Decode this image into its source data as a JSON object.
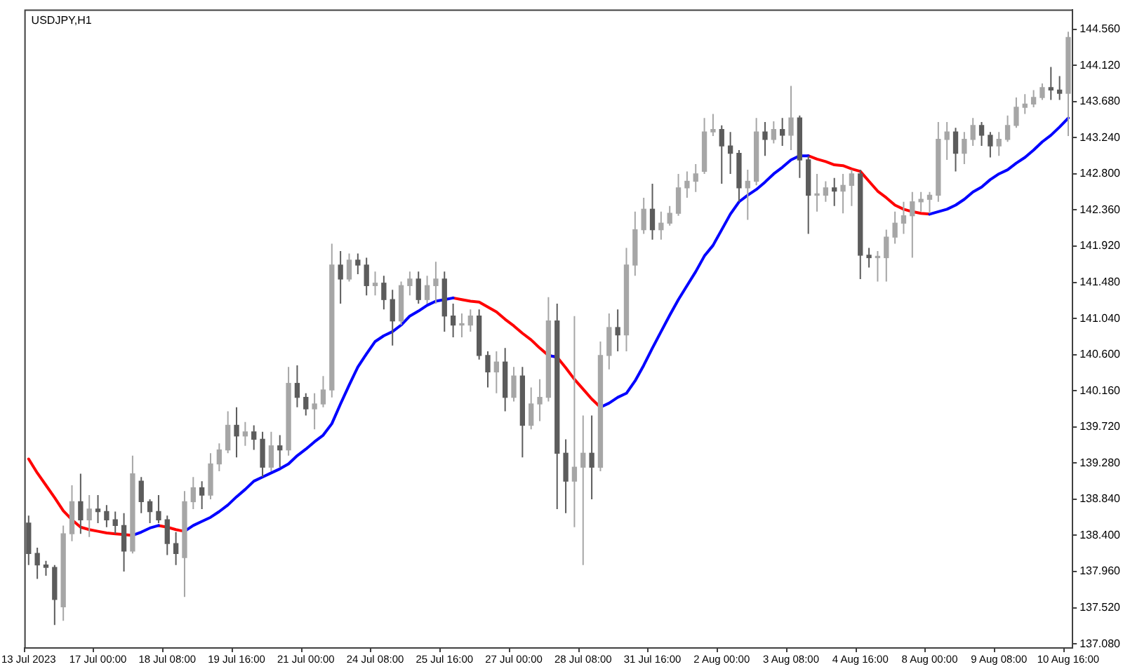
{
  "chart_data": {
    "type": "candlestick",
    "title": "USDJPY,H1",
    "marker": "none",
    "categories": [
      "13 Jul 2023",
      null,
      null,
      null,
      null,
      null,
      null,
      null,
      "17 Jul 00:00",
      null,
      null,
      null,
      null,
      null,
      null,
      null,
      "18 Jul 08:00",
      null,
      null,
      null,
      null,
      null,
      null,
      null,
      "19 Jul 16:00",
      null,
      null,
      null,
      null,
      null,
      null,
      null,
      "21 Jul 00:00",
      null,
      null,
      null,
      null,
      null,
      null,
      null,
      "24 Jul 08:00",
      null,
      null,
      null,
      null,
      null,
      null,
      null,
      "25 Jul 16:00",
      null,
      null,
      null,
      null,
      null,
      null,
      null,
      "27 Jul 00:00",
      null,
      null,
      null,
      null,
      null,
      null,
      null,
      "28 Jul 08:00",
      null,
      null,
      null,
      null,
      null,
      null,
      null,
      "31 Jul 16:00",
      null,
      null,
      null,
      null,
      null,
      null,
      null,
      "2 Aug 00:00",
      null,
      null,
      null,
      null,
      null,
      null,
      null,
      "3 Aug 08:00",
      null,
      null,
      null,
      null,
      null,
      null,
      null,
      "4 Aug 16:00",
      null,
      null,
      null,
      null,
      null,
      null,
      null,
      "8 Aug 00:00",
      null,
      null,
      null,
      null,
      null,
      null,
      null,
      "9 Aug 08:00",
      null,
      null,
      null,
      null,
      null,
      null,
      null,
      "10 Aug 16:00"
    ],
    "ohlc": [
      [
        138.55,
        138.64,
        138.04,
        138.18
      ],
      [
        138.18,
        138.25,
        137.87,
        138.04
      ],
      [
        138.04,
        138.09,
        137.91,
        138.01
      ],
      [
        138.01,
        138.04,
        137.31,
        137.62
      ],
      [
        137.53,
        138.52,
        137.36,
        138.42
      ],
      [
        138.42,
        139.01,
        138.33,
        138.81
      ],
      [
        138.81,
        139.15,
        138.42,
        138.59
      ],
      [
        138.59,
        138.89,
        138.38,
        138.72
      ],
      [
        138.72,
        138.89,
        138.55,
        138.69
      ],
      [
        138.69,
        138.77,
        138.5,
        138.59
      ],
      [
        138.59,
        138.69,
        138.42,
        138.52
      ],
      [
        138.52,
        138.67,
        137.96,
        138.21
      ],
      [
        138.21,
        139.37,
        138.18,
        139.15
      ],
      [
        139.06,
        139.11,
        138.67,
        138.81
      ],
      [
        138.81,
        138.84,
        138.55,
        138.69
      ],
      [
        138.69,
        138.89,
        138.55,
        138.59
      ],
      [
        138.59,
        138.64,
        138.16,
        138.3
      ],
      [
        138.3,
        138.44,
        138.04,
        138.18
      ],
      [
        138.13,
        138.94,
        137.65,
        138.81
      ],
      [
        138.81,
        139.11,
        138.72,
        138.98
      ],
      [
        138.98,
        139.06,
        138.72,
        138.89
      ],
      [
        138.89,
        139.4,
        138.84,
        139.27
      ],
      [
        139.27,
        139.52,
        139.18,
        139.44
      ],
      [
        139.44,
        139.91,
        139.4,
        139.74
      ],
      [
        139.74,
        139.96,
        139.35,
        139.61
      ],
      [
        139.61,
        139.78,
        139.49,
        139.66
      ],
      [
        139.66,
        139.74,
        139.44,
        139.57
      ],
      [
        139.57,
        139.66,
        139.11,
        139.23
      ],
      [
        139.23,
        139.66,
        139.18,
        139.49
      ],
      [
        139.49,
        139.62,
        139.23,
        139.44
      ],
      [
        139.44,
        140.45,
        139.37,
        140.25
      ],
      [
        140.25,
        140.47,
        139.96,
        140.08
      ],
      [
        140.08,
        140.13,
        139.86,
        139.94
      ],
      [
        139.94,
        140.13,
        139.69,
        140.0
      ],
      [
        140.0,
        140.34,
        139.96,
        140.17
      ],
      [
        140.17,
        141.95,
        140.08,
        141.69
      ],
      [
        141.69,
        141.86,
        141.22,
        141.52
      ],
      [
        141.52,
        141.83,
        141.49,
        141.75
      ],
      [
        141.75,
        141.83,
        141.58,
        141.69
      ],
      [
        141.69,
        141.78,
        141.32,
        141.44
      ],
      [
        141.44,
        141.61,
        141.32,
        141.47
      ],
      [
        141.47,
        141.56,
        141.15,
        141.27
      ],
      [
        141.27,
        141.39,
        140.71,
        141.01
      ],
      [
        141.01,
        141.49,
        140.96,
        141.44
      ],
      [
        141.44,
        141.61,
        141.32,
        141.52
      ],
      [
        141.52,
        141.61,
        141.22,
        141.27
      ],
      [
        141.27,
        141.56,
        141.22,
        141.44
      ],
      [
        141.44,
        141.73,
        141.22,
        141.52
      ],
      [
        141.52,
        141.61,
        140.88,
        141.07
      ],
      [
        141.07,
        141.22,
        140.81,
        140.96
      ],
      [
        140.96,
        141.1,
        140.81,
        140.96
      ],
      [
        140.96,
        141.15,
        140.88,
        141.07
      ],
      [
        141.07,
        141.15,
        140.54,
        140.59
      ],
      [
        140.59,
        140.64,
        140.2,
        140.39
      ],
      [
        140.39,
        140.64,
        140.13,
        140.51
      ],
      [
        140.51,
        140.68,
        139.91,
        140.08
      ],
      [
        140.08,
        140.45,
        140.03,
        140.34
      ],
      [
        140.34,
        140.45,
        139.35,
        139.74
      ],
      [
        139.74,
        140.2,
        139.69,
        140.0
      ],
      [
        140.0,
        140.3,
        139.79,
        140.08
      ],
      [
        140.08,
        141.3,
        140.03,
        141.01
      ],
      [
        141.01,
        141.22,
        138.72,
        139.4
      ],
      [
        139.4,
        139.57,
        138.67,
        139.06
      ],
      [
        139.06,
        141.07,
        138.5,
        139.23
      ],
      [
        139.23,
        139.86,
        138.04,
        139.4
      ],
      [
        139.4,
        139.86,
        138.84,
        139.23
      ],
      [
        139.23,
        140.76,
        139.18,
        140.59
      ],
      [
        140.59,
        141.1,
        140.42,
        140.93
      ],
      [
        140.93,
        141.15,
        140.64,
        140.84
      ],
      [
        140.84,
        141.9,
        140.64,
        141.69
      ],
      [
        141.69,
        142.34,
        141.56,
        142.12
      ],
      [
        142.12,
        142.51,
        142.07,
        142.37
      ],
      [
        142.37,
        142.68,
        142.0,
        142.12
      ],
      [
        142.12,
        142.34,
        142.0,
        142.2
      ],
      [
        142.2,
        142.41,
        142.17,
        142.32
      ],
      [
        142.32,
        142.8,
        142.29,
        142.63
      ],
      [
        142.63,
        142.83,
        142.51,
        142.71
      ],
      [
        142.71,
        142.92,
        142.58,
        142.8
      ],
      [
        142.83,
        143.48,
        142.8,
        143.31
      ],
      [
        143.31,
        143.53,
        143.26,
        143.34
      ],
      [
        143.34,
        143.39,
        142.68,
        143.14
      ],
      [
        143.14,
        143.31,
        142.8,
        143.05
      ],
      [
        143.05,
        143.09,
        142.46,
        142.63
      ],
      [
        142.63,
        142.85,
        142.24,
        142.71
      ],
      [
        142.71,
        143.48,
        142.66,
        143.31
      ],
      [
        143.31,
        143.43,
        143.02,
        143.22
      ],
      [
        143.22,
        143.44,
        143.17,
        143.34
      ],
      [
        143.34,
        143.48,
        143.14,
        143.27
      ],
      [
        143.27,
        143.87,
        143.09,
        143.48
      ],
      [
        143.48,
        143.51,
        142.75,
        142.97
      ],
      [
        142.97,
        143.02,
        142.07,
        142.54
      ],
      [
        142.54,
        142.8,
        142.34,
        142.54
      ],
      [
        142.54,
        142.71,
        142.46,
        142.63
      ],
      [
        142.63,
        142.75,
        142.41,
        142.59
      ],
      [
        142.59,
        142.8,
        142.32,
        142.66
      ],
      [
        142.66,
        142.85,
        142.41,
        142.8
      ],
      [
        142.8,
        142.85,
        141.52,
        141.81
      ],
      [
        141.81,
        141.9,
        141.66,
        141.78
      ],
      [
        141.78,
        141.86,
        141.49,
        141.78
      ],
      [
        141.78,
        142.12,
        141.49,
        142.03
      ],
      [
        142.03,
        142.34,
        141.95,
        142.2
      ],
      [
        142.2,
        142.46,
        142.07,
        142.29
      ],
      [
        142.29,
        142.58,
        141.78,
        142.46
      ],
      [
        142.46,
        142.58,
        142.34,
        142.49
      ],
      [
        142.49,
        142.58,
        142.32,
        142.54
      ],
      [
        142.54,
        143.43,
        142.46,
        143.22
      ],
      [
        143.22,
        143.43,
        142.97,
        143.31
      ],
      [
        143.31,
        143.36,
        142.83,
        143.05
      ],
      [
        143.05,
        143.31,
        142.92,
        143.22
      ],
      [
        143.22,
        143.48,
        143.14,
        143.39
      ],
      [
        143.39,
        143.43,
        143.14,
        143.27
      ],
      [
        143.27,
        143.31,
        143.0,
        143.14
      ],
      [
        143.14,
        143.31,
        143.02,
        143.22
      ],
      [
        143.22,
        143.51,
        143.19,
        143.39
      ],
      [
        143.39,
        143.73,
        143.36,
        143.61
      ],
      [
        143.61,
        143.77,
        143.53,
        143.65
      ],
      [
        143.65,
        143.82,
        143.61,
        143.73
      ],
      [
        143.73,
        143.9,
        143.7,
        143.85
      ],
      [
        143.85,
        144.1,
        143.7,
        143.82
      ],
      [
        143.82,
        143.99,
        143.7,
        143.78
      ],
      [
        143.78,
        144.53,
        143.26,
        144.46
      ]
    ],
    "colors": [
      "#5c5c5c",
      "#5c5c5c",
      "#5c5c5c",
      "#5c5c5c",
      "#a6a6a6",
      "#a6a6a6",
      "#5c5c5c",
      "#a6a6a6",
      "#5c5c5c",
      "#5c5c5c",
      "#5c5c5c",
      "#5c5c5c",
      "#a6a6a6",
      "#5c5c5c",
      "#5c5c5c",
      "#5c5c5c",
      "#5c5c5c",
      "#5c5c5c",
      "#a6a6a6",
      "#a6a6a6",
      "#5c5c5c",
      "#a6a6a6",
      "#a6a6a6",
      "#a6a6a6",
      "#5c5c5c",
      "#a6a6a6",
      "#5c5c5c",
      "#5c5c5c",
      "#a6a6a6",
      "#5c5c5c",
      "#a6a6a6",
      "#5c5c5c",
      "#5c5c5c",
      "#a6a6a6",
      "#a6a6a6",
      "#a6a6a6",
      "#5c5c5c",
      "#a6a6a6",
      "#5c5c5c",
      "#5c5c5c",
      "#a6a6a6",
      "#5c5c5c",
      "#5c5c5c",
      "#a6a6a6",
      "#a6a6a6",
      "#5c5c5c",
      "#a6a6a6",
      "#a6a6a6",
      "#5c5c5c",
      "#5c5c5c",
      "#a6a6a6",
      "#a6a6a6",
      "#5c5c5c",
      "#5c5c5c",
      "#a6a6a6",
      "#5c5c5c",
      "#a6a6a6",
      "#5c5c5c",
      "#a6a6a6",
      "#a6a6a6",
      "#a6a6a6",
      "#5c5c5c",
      "#5c5c5c",
      "#a6a6a6",
      "#a6a6a6",
      "#5c5c5c",
      "#a6a6a6",
      "#a6a6a6",
      "#5c5c5c",
      "#a6a6a6",
      "#a6a6a6",
      "#a6a6a6",
      "#5c5c5c",
      "#a6a6a6",
      "#a6a6a6",
      "#a6a6a6",
      "#a6a6a6",
      "#a6a6a6",
      "#a6a6a6",
      "#a6a6a6",
      "#5c5c5c",
      "#5c5c5c",
      "#5c5c5c",
      "#a6a6a6",
      "#a6a6a6",
      "#5c5c5c",
      "#a6a6a6",
      "#5c5c5c",
      "#a6a6a6",
      "#5c5c5c",
      "#5c5c5c",
      "#a6a6a6",
      "#a6a6a6",
      "#5c5c5c",
      "#a6a6a6",
      "#a6a6a6",
      "#5c5c5c",
      "#5c5c5c",
      "#a6a6a6",
      "#a6a6a6",
      "#a6a6a6",
      "#a6a6a6",
      "#a6a6a6",
      "#a6a6a6",
      "#a6a6a6",
      "#a6a6a6",
      "#a6a6a6",
      "#5c5c5c",
      "#a6a6a6",
      "#a6a6a6",
      "#5c5c5c",
      "#5c5c5c",
      "#a6a6a6",
      "#a6a6a6",
      "#a6a6a6",
      "#a6a6a6",
      "#a6a6a6",
      "#a6a6a6",
      "#5c5c5c",
      "#5c5c5c",
      "#a6a6a6"
    ],
    "series": [
      {
        "type": "line",
        "color": "#ff0000",
        "values": [
          139.33,
          139.16,
          139.01,
          138.86,
          138.7,
          138.59,
          138.5,
          138.47,
          138.45,
          138.43,
          138.42,
          138.41,
          138.4,
          null,
          null,
          138.52,
          138.5,
          138.47,
          138.45,
          null,
          null,
          null,
          null,
          null,
          null,
          null,
          null,
          null,
          null,
          null,
          null,
          null,
          null,
          null,
          null,
          null,
          null,
          null,
          null,
          null,
          null,
          null,
          null,
          null,
          null,
          null,
          null,
          null,
          null,
          141.29,
          141.27,
          141.25,
          141.24,
          141.18,
          141.12,
          141.03,
          140.95,
          140.86,
          140.78,
          140.68,
          140.59,
          140.57,
          140.44,
          140.3,
          140.18,
          140.06,
          139.96,
          null,
          null,
          null,
          null,
          null,
          null,
          null,
          null,
          null,
          null,
          null,
          null,
          null,
          null,
          null,
          null,
          null,
          null,
          null,
          null,
          null,
          null,
          null,
          143.02,
          142.98,
          142.95,
          142.91,
          142.9,
          142.86,
          142.83,
          142.71,
          142.59,
          142.51,
          142.42,
          142.37,
          142.34,
          142.32,
          142.31,
          null,
          null,
          null,
          null,
          null,
          null,
          null,
          null,
          null,
          null,
          null,
          null,
          null,
          null,
          null,
          null
        ]
      },
      {
        "type": "line",
        "color": "#0000ff",
        "values": [
          null,
          null,
          null,
          null,
          null,
          null,
          null,
          null,
          null,
          null,
          null,
          null,
          138.4,
          138.44,
          138.49,
          138.52,
          null,
          null,
          138.45,
          138.52,
          138.57,
          138.62,
          138.69,
          138.77,
          138.87,
          138.96,
          139.06,
          139.11,
          139.16,
          139.21,
          139.27,
          139.37,
          139.45,
          139.54,
          139.62,
          139.76,
          140.0,
          140.23,
          140.45,
          140.61,
          140.76,
          140.83,
          140.88,
          140.96,
          141.07,
          141.13,
          141.2,
          141.25,
          141.27,
          141.29,
          null,
          null,
          null,
          null,
          null,
          null,
          null,
          null,
          null,
          null,
          140.59,
          140.57,
          null,
          null,
          null,
          null,
          139.96,
          140.01,
          140.08,
          140.13,
          140.28,
          140.47,
          140.68,
          140.88,
          141.08,
          141.27,
          141.44,
          141.61,
          141.8,
          141.93,
          142.12,
          142.31,
          142.46,
          142.54,
          142.61,
          142.7,
          142.8,
          142.88,
          142.97,
          143.02,
          143.02,
          null,
          null,
          null,
          null,
          null,
          null,
          null,
          null,
          null,
          null,
          null,
          null,
          null,
          142.31,
          142.34,
          142.37,
          142.42,
          142.49,
          142.58,
          142.64,
          142.73,
          142.8,
          142.85,
          142.93,
          143.0,
          143.09,
          143.19,
          143.27,
          143.37,
          143.48
        ]
      }
    ],
    "ylim": [
      137.03,
      144.8
    ],
    "yticks": [
      {
        "value": 137.08,
        "label": "137.080"
      },
      {
        "value": 137.52,
        "label": "137.520"
      },
      {
        "value": 137.96,
        "label": "137.960"
      },
      {
        "value": 138.4,
        "label": "138.400"
      },
      {
        "value": 138.84,
        "label": "138.840"
      },
      {
        "value": 139.28,
        "label": "139.280"
      },
      {
        "value": 139.72,
        "label": "139.720"
      },
      {
        "value": 140.16,
        "label": "140.160"
      },
      {
        "value": 140.6,
        "label": "140.600"
      },
      {
        "value": 141.04,
        "label": "141.040"
      },
      {
        "value": 141.48,
        "label": "141.480"
      },
      {
        "value": 141.92,
        "label": "141.920"
      },
      {
        "value": 142.36,
        "label": "142.360"
      },
      {
        "value": 142.8,
        "label": "142.800"
      },
      {
        "value": 143.24,
        "label": "143.240"
      },
      {
        "value": 143.68,
        "label": "143.680"
      },
      {
        "value": 144.12,
        "label": "144.120"
      },
      {
        "value": 144.56,
        "label": "144.560"
      }
    ]
  }
}
